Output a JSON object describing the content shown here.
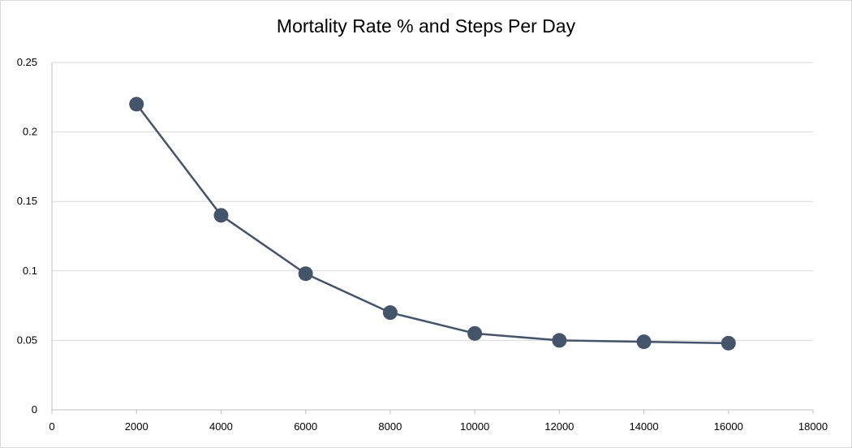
{
  "chart_data": {
    "type": "line",
    "title": "Mortality Rate % and Steps Per Day",
    "xlabel": "",
    "ylabel": "",
    "xlim": [
      0,
      18000
    ],
    "ylim": [
      0,
      0.25
    ],
    "x_ticks": [
      "0",
      "2000",
      "4000",
      "6000",
      "8000",
      "10000",
      "12000",
      "14000",
      "16000",
      "18000"
    ],
    "y_ticks": [
      "0",
      "0.05",
      "0.1",
      "0.15",
      "0.2",
      "0.25"
    ],
    "grid": "horizontal",
    "legend": "none",
    "series": [
      {
        "color": "#44546a",
        "marker": "circle",
        "points": [
          {
            "x": 2000,
            "y": 0.22
          },
          {
            "x": 4000,
            "y": 0.14
          },
          {
            "x": 6000,
            "y": 0.098
          },
          {
            "x": 8000,
            "y": 0.07
          },
          {
            "x": 10000,
            "y": 0.055
          },
          {
            "x": 12000,
            "y": 0.05
          },
          {
            "x": 14000,
            "y": 0.049
          },
          {
            "x": 16000,
            "y": 0.048
          }
        ]
      }
    ]
  }
}
